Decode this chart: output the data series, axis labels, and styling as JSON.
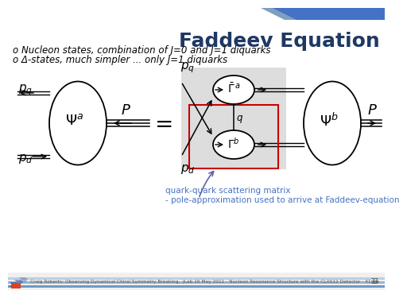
{
  "title": "Faddeev Equation",
  "title_color": "#1F3864",
  "title_fontsize": 18,
  "bullet1": "o Nucleon states, combination of J=0 and J=1 diquarks",
  "bullet2": "o Δ-states, much simpler ... only J=1 diquarks",
  "bullet_fontsize": 8.5,
  "annotation_line1": "    quark-quark scattering matrix",
  "annotation_line2": "    - pole-approximation used to arrive at Faddeev-equation",
  "annotation_color": "#4472C4",
  "annotation_fontsize": 7.5,
  "footer_text": "Craig Roberts: Observing Dynamical Chiral Symmetry Breaking,  JLab 16 May 2011 - Nucleon Resonance Structure with the CLAS12 Detector - 41ogs",
  "footer_fontsize": 4.2,
  "page_number": "33",
  "bg_color": "#FFFFFF",
  "stripe_color": "#7F9FC0",
  "stripe_color2": "#4472C4"
}
